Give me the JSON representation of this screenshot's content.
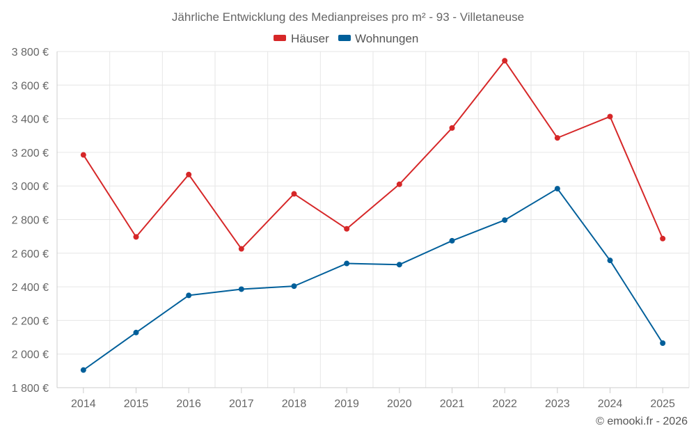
{
  "chart_data": {
    "type": "line",
    "title": "Jährliche Entwicklung des Medianpreises pro m² - 93 - Villetaneuse",
    "categories": [
      "2014",
      "2015",
      "2016",
      "2017",
      "2018",
      "2019",
      "2020",
      "2021",
      "2022",
      "2023",
      "2024",
      "2025"
    ],
    "series": [
      {
        "name": "Häuser",
        "color": "#d62728",
        "values": [
          3185,
          2697,
          3068,
          2626,
          2953,
          2745,
          3010,
          3345,
          3745,
          3286,
          3413,
          2687
        ]
      },
      {
        "name": "Wohnungen",
        "color": "#005f9a",
        "values": [
          1905,
          2128,
          2349,
          2386,
          2404,
          2539,
          2532,
          2674,
          2797,
          2984,
          2557,
          2065
        ]
      }
    ],
    "ylim": [
      1800,
      3800
    ],
    "yticks": [
      1800,
      2000,
      2200,
      2400,
      2600,
      2800,
      3000,
      3200,
      3400,
      3600,
      3800
    ],
    "ytick_labels": [
      "1 800 €",
      "2 000 €",
      "2 200 €",
      "2 400 €",
      "2 600 €",
      "2 800 €",
      "3 000 €",
      "3 200 €",
      "3 400 €",
      "3 600 €",
      "3 800 €"
    ],
    "legend_position": "top-center",
    "grid": true,
    "xlabel": "",
    "ylabel": ""
  },
  "credit": "© emooki.fr - 2026"
}
